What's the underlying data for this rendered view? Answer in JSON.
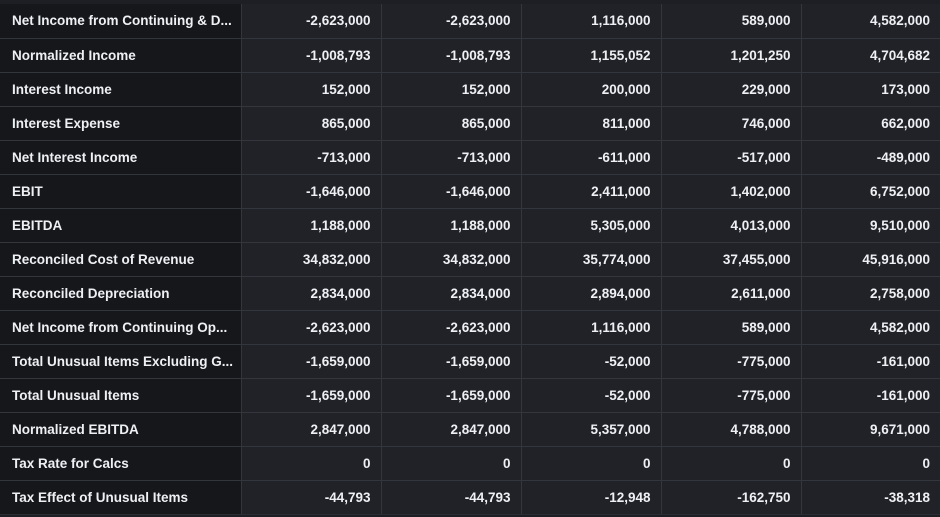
{
  "table": {
    "rows": [
      {
        "label": "Net Income from Continuing & D...",
        "values": [
          "-2,623,000",
          "-2,623,000",
          "1,116,000",
          "589,000",
          "4,582,000"
        ]
      },
      {
        "label": "Normalized Income",
        "values": [
          "-1,008,793",
          "-1,008,793",
          "1,155,052",
          "1,201,250",
          "4,704,682"
        ]
      },
      {
        "label": "Interest Income",
        "values": [
          "152,000",
          "152,000",
          "200,000",
          "229,000",
          "173,000"
        ]
      },
      {
        "label": "Interest Expense",
        "values": [
          "865,000",
          "865,000",
          "811,000",
          "746,000",
          "662,000"
        ]
      },
      {
        "label": "Net Interest Income",
        "values": [
          "-713,000",
          "-713,000",
          "-611,000",
          "-517,000",
          "-489,000"
        ]
      },
      {
        "label": "EBIT",
        "values": [
          "-1,646,000",
          "-1,646,000",
          "2,411,000",
          "1,402,000",
          "6,752,000"
        ]
      },
      {
        "label": "EBITDA",
        "values": [
          "1,188,000",
          "1,188,000",
          "5,305,000",
          "4,013,000",
          "9,510,000"
        ]
      },
      {
        "label": "Reconciled Cost of Revenue",
        "values": [
          "34,832,000",
          "34,832,000",
          "35,774,000",
          "37,455,000",
          "45,916,000"
        ]
      },
      {
        "label": "Reconciled Depreciation",
        "values": [
          "2,834,000",
          "2,834,000",
          "2,894,000",
          "2,611,000",
          "2,758,000"
        ]
      },
      {
        "label": "Net Income from Continuing Op...",
        "values": [
          "-2,623,000",
          "-2,623,000",
          "1,116,000",
          "589,000",
          "4,582,000"
        ]
      },
      {
        "label": "Total Unusual Items Excluding G...",
        "values": [
          "-1,659,000",
          "-1,659,000",
          "-52,000",
          "-775,000",
          "-161,000"
        ]
      },
      {
        "label": "Total Unusual Items",
        "values": [
          "-1,659,000",
          "-1,659,000",
          "-52,000",
          "-775,000",
          "-161,000"
        ]
      },
      {
        "label": "Normalized EBITDA",
        "values": [
          "2,847,000",
          "2,847,000",
          "5,357,000",
          "4,788,000",
          "9,671,000"
        ]
      },
      {
        "label": "Tax Rate for Calcs",
        "values": [
          "0",
          "0",
          "0",
          "0",
          "0"
        ]
      },
      {
        "label": "Tax Effect of Unusual Items",
        "values": [
          "-44,793",
          "-44,793",
          "-12,948",
          "-162,750",
          "-38,318"
        ]
      }
    ]
  }
}
